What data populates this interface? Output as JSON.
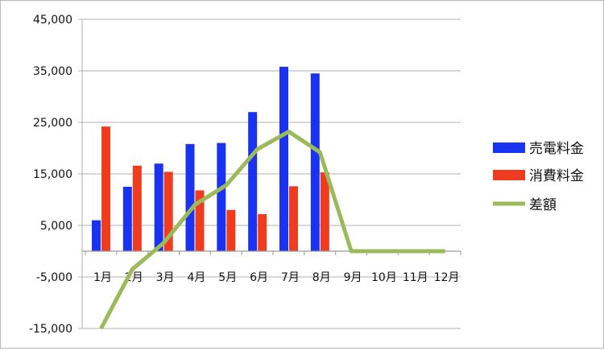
{
  "chart_data": {
    "type": "bar",
    "categories": [
      "1月",
      "2月",
      "3月",
      "4月",
      "5月",
      "6月",
      "7月",
      "8月",
      "9月",
      "10月",
      "11月",
      "12月"
    ],
    "y_ticks": [
      "45,000",
      "35,000",
      "25,000",
      "15,000",
      "5,000",
      "-5,000",
      "-15,000"
    ],
    "y_tick_values": [
      45000,
      35000,
      25000,
      15000,
      5000,
      -5000,
      -15000
    ],
    "ylim": [
      -15000,
      45000
    ],
    "grid": true,
    "legend_position": "right",
    "series": [
      {
        "name": "売電料金",
        "type": "bar",
        "color": "#1a33f0",
        "values": [
          6000,
          12500,
          17000,
          20800,
          21000,
          27000,
          35800,
          34500,
          null,
          null,
          null,
          null
        ]
      },
      {
        "name": "消費料金",
        "type": "bar",
        "color": "#f03c1e",
        "values": [
          24200,
          16600,
          15400,
          11800,
          8000,
          7200,
          12600,
          15300,
          null,
          null,
          null,
          null
        ]
      },
      {
        "name": "差額",
        "type": "line",
        "color": "#9bba59",
        "values": [
          -15000,
          -3500,
          1600,
          9000,
          12800,
          19800,
          23200,
          19200,
          0,
          0,
          0,
          0
        ]
      }
    ]
  }
}
